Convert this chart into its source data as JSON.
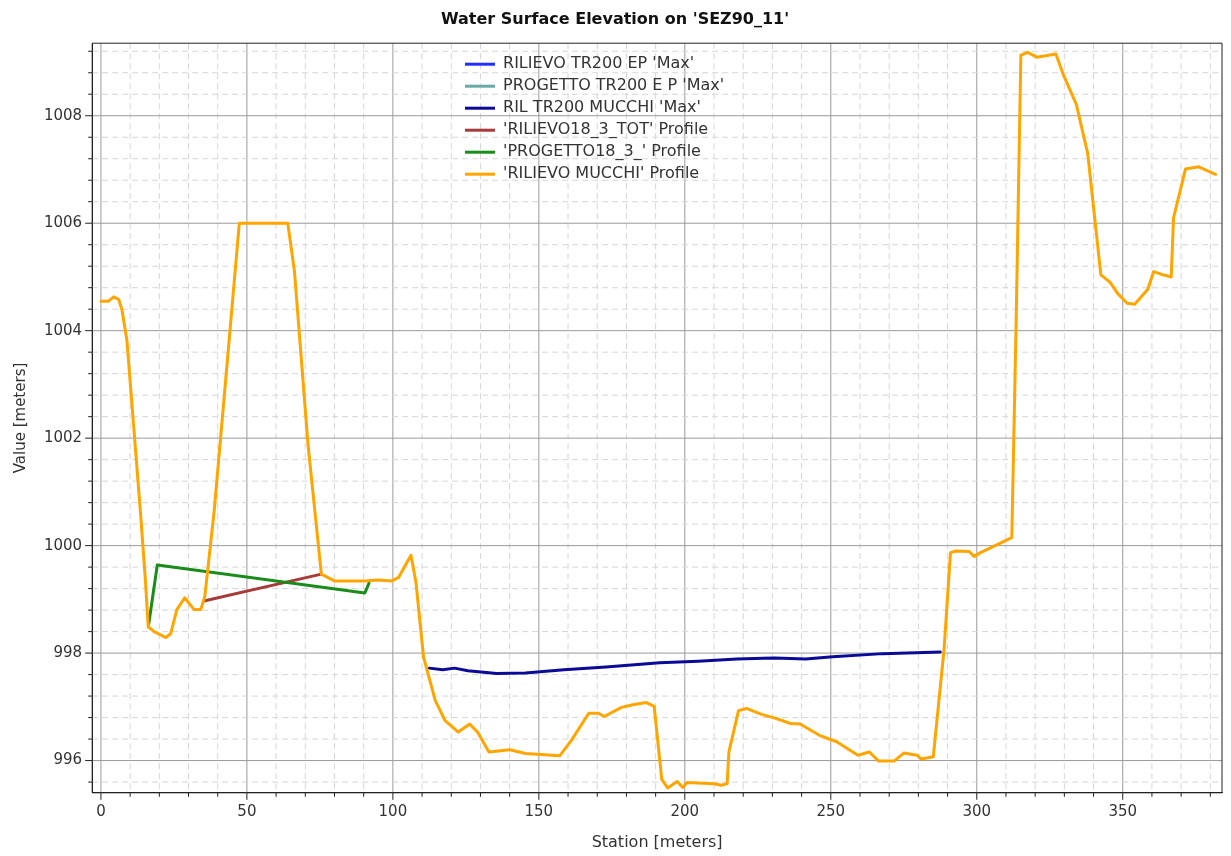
{
  "chart_data": {
    "type": "line",
    "title": "Water Surface Elevation on 'SEZ90_11'",
    "xlabel": "Station [meters]",
    "ylabel": "Value [meters]",
    "xlim": [
      -3,
      384
    ],
    "ylim": [
      995.4,
      1009.35
    ],
    "xticks": [
      0,
      {
        "value": 10,
        "label": null
      },
      {
        "value": 20,
        "label": null
      },
      {
        "value": 30,
        "label": null
      },
      {
        "value": 40,
        "label": null
      },
      50,
      {
        "value": 60,
        "label": null
      },
      {
        "value": 70,
        "label": null
      },
      {
        "value": 80,
        "label": null
      },
      {
        "value": 90,
        "label": null
      },
      100,
      {
        "value": 110,
        "label": null
      },
      {
        "value": 120,
        "label": null
      },
      {
        "value": 130,
        "label": null
      },
      {
        "value": 140,
        "label": null
      },
      150,
      {
        "value": 160,
        "label": null
      },
      {
        "value": 170,
        "label": null
      },
      {
        "value": 180,
        "label": null
      },
      {
        "value": 190,
        "label": null
      },
      200,
      {
        "value": 210,
        "label": null
      },
      {
        "value": 220,
        "label": null
      },
      {
        "value": 230,
        "label": null
      },
      {
        "value": 240,
        "label": null
      },
      250,
      {
        "value": 260,
        "label": null
      },
      {
        "value": 270,
        "label": null
      },
      {
        "value": 280,
        "label": null
      },
      {
        "value": 290,
        "label": null
      },
      300,
      {
        "value": 310,
        "label": null
      },
      {
        "value": 320,
        "label": null
      },
      {
        "value": 330,
        "label": null
      },
      {
        "value": 340,
        "label": null
      },
      350,
      {
        "value": 360,
        "label": null
      },
      {
        "value": 370,
        "label": null
      },
      {
        "value": 380,
        "label": null
      }
    ],
    "yticks": [
      {
        "value": 995.6,
        "label": null
      },
      996,
      {
        "value": 996.4,
        "label": null
      },
      {
        "value": 996.8,
        "label": null
      },
      {
        "value": 997.2,
        "label": null
      },
      {
        "value": 997.6,
        "label": null
      },
      998,
      {
        "value": 998.4,
        "label": null
      },
      {
        "value": 998.8,
        "label": null
      },
      {
        "value": 999.2,
        "label": null
      },
      {
        "value": 999.6,
        "label": null
      },
      1000,
      {
        "value": 1000.4,
        "label": null
      },
      {
        "value": 1000.8,
        "label": null
      },
      {
        "value": 1001.2,
        "label": null
      },
      {
        "value": 1001.6,
        "label": null
      },
      1002,
      {
        "value": 1002.4,
        "label": null
      },
      {
        "value": 1002.8,
        "label": null
      },
      {
        "value": 1003.2,
        "label": null
      },
      {
        "value": 1003.6,
        "label": null
      },
      1004,
      {
        "value": 1004.4,
        "label": null
      },
      {
        "value": 1004.8,
        "label": null
      },
      {
        "value": 1005.2,
        "label": null
      },
      {
        "value": 1005.6,
        "label": null
      },
      1006,
      {
        "value": 1006.4,
        "label": null
      },
      {
        "value": 1006.8,
        "label": null
      },
      {
        "value": 1007.2,
        "label": null
      },
      {
        "value": 1007.6,
        "label": null
      },
      1008,
      {
        "value": 1008.4,
        "label": null
      },
      {
        "value": 1008.8,
        "label": null
      },
      {
        "value": 1009.2,
        "label": null
      }
    ],
    "grid": true,
    "legend": "top",
    "marker": "none",
    "line_style": "solid",
    "series": [
      {
        "name": "RILIEVO TR200 EP 'Max'",
        "color": "#1f2fff"
      },
      {
        "name": "PROGETTO TR200 E P 'Max'",
        "color": "#6aa8a8"
      },
      {
        "name": "RIL TR200 MUCCHI 'Max'",
        "color": "#0a0a96",
        "x": [
          112.5,
          117.1,
          121.1,
          125.7,
          135.5,
          145.4,
          158.6,
          173,
          191.4,
          204.6,
          217.8,
          230.9,
          241.4,
          250.7,
          267.8,
          287.5
        ],
        "values": [
          997.72,
          997.69,
          997.72,
          997.67,
          997.62,
          997.63,
          997.69,
          997.74,
          997.82,
          997.85,
          997.89,
          997.91,
          997.89,
          997.93,
          997.99,
          998.02
        ]
      },
      {
        "name": "'RILIEVO18_3_TOT' Profile",
        "color": "#a83a3a",
        "x": [
          35.3,
          75.5
        ],
        "values": [
          998.97,
          999.47
        ]
      },
      {
        "name": "'PROGETTO18_3_' Profile",
        "color": "#1a8c1a",
        "x": [
          16.4,
          19.3,
          90.4,
          91.8
        ],
        "values": [
          998.55,
          999.64,
          999.12,
          999.3
        ]
      },
      {
        "name": "'RILIEVO MUCCHI' Profile",
        "color": "#ffa500",
        "x": [
          0,
          2.6,
          4.4,
          6.1,
          7.2,
          8.9,
          11.2,
          13.5,
          15.2,
          16.2,
          18.2,
          22.2,
          23.9,
          26,
          28.7,
          31.9,
          34.2,
          35.6,
          38.8,
          43.4,
          47.4,
          64,
          66.3,
          70.9,
          75.5,
          80.1,
          90.4,
          95,
          99.5,
          102,
          106.2,
          107.9,
          110.5,
          114.5,
          117.8,
          122.4,
          126.3,
          129,
          132.9,
          140.1,
          145.4,
          157.2,
          161.2,
          167.1,
          170.4,
          172.4,
          178.3,
          182.2,
          186.8,
          189.5,
          192.1,
          194.1,
          197.4,
          199.3,
          200.7,
          209.9,
          212.5,
          214.5,
          215.1,
          218.4,
          221.1,
          226.3,
          230.9,
          236.2,
          239.5,
          246.1,
          252,
          259.3,
          263.2,
          266.4,
          271.7,
          275,
          279.6,
          280.9,
          285.1,
          288.8,
          291,
          292.9,
          297.4,
          299.1,
          301.3,
          312,
          313.5,
          315.1,
          317.4,
          320.6,
          327.1,
          329.6,
          334.1,
          338,
          342.5,
          345.7,
          348.3,
          351.5,
          354.1,
          358.6,
          360.6,
          363.8,
          366.6,
          367.4,
          371.5,
          376,
          381.8
        ],
        "values": [
          1004.55,
          1004.55,
          1004.63,
          1004.58,
          1004.39,
          1003.82,
          1002.23,
          1000.65,
          999.38,
          998.49,
          998.4,
          998.29,
          998.36,
          998.81,
          999.03,
          998.81,
          998.81,
          999.06,
          1000.65,
          1003.5,
          1006.0,
          1006.0,
          1005.1,
          1001.9,
          999.47,
          999.34,
          999.34,
          999.36,
          999.34,
          999.41,
          999.82,
          999.32,
          997.93,
          997.12,
          996.75,
          996.53,
          996.68,
          996.53,
          996.16,
          996.2,
          996.13,
          996.09,
          996.38,
          996.88,
          996.88,
          996.82,
          996.99,
          997.04,
          997.08,
          997.01,
          995.65,
          995.49,
          995.61,
          995.5,
          995.59,
          995.57,
          995.54,
          995.57,
          996.16,
          996.93,
          996.97,
          996.86,
          996.79,
          996.69,
          996.68,
          996.47,
          996.35,
          996.1,
          996.16,
          995.99,
          995.99,
          996.14,
          996.1,
          996.03,
          996.07,
          998.07,
          999.87,
          999.9,
          999.89,
          999.8,
          999.87,
          1000.15,
          1004.2,
          1009.13,
          1009.18,
          1009.09,
          1009.15,
          1008.77,
          1008.21,
          1007.3,
          1005.04,
          1004.9,
          1004.69,
          1004.51,
          1004.49,
          1004.77,
          1005.1,
          1005.04,
          1005.0,
          1006.1,
          1007.01,
          1007.05,
          1006.91
        ]
      }
    ]
  }
}
